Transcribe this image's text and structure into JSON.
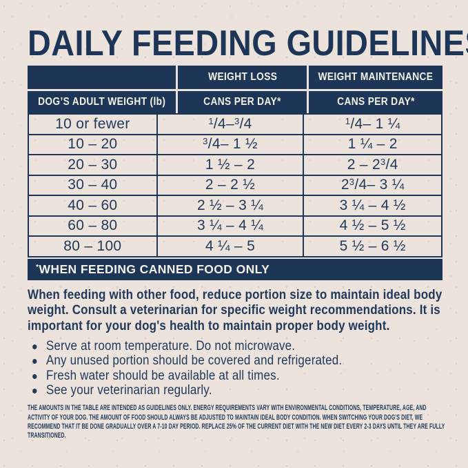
{
  "page": {
    "title": "DAILY FEEDING GUIDELINES"
  },
  "colors": {
    "navy": "#1d3557",
    "cream": "#ece4dc",
    "header_text": "#f6f2ec",
    "body_text": "#21395a"
  },
  "table": {
    "col_group_headers": [
      "",
      "WEIGHT LOSS",
      "WEIGHT MAINTENANCE"
    ],
    "col_headers": [
      "DOG’S ADULT WEIGHT (lb)",
      "CANS PER DAY*",
      "CANS PER DAY*"
    ],
    "rows": [
      {
        "weight": "10 or fewer",
        "weight_loss": "1/4 – 3/4",
        "weight_maintenance": "1/4 – 1 ¼"
      },
      {
        "weight": "10 – 20",
        "weight_loss": "3/4 – 1 ½",
        "weight_maintenance": "1 ¼ – 2"
      },
      {
        "weight": "20 – 30",
        "weight_loss": "1 ½ – 2",
        "weight_maintenance": "2 – 2 3/4"
      },
      {
        "weight": "30 – 40",
        "weight_loss": "2 – 2 ½",
        "weight_maintenance": "2 3/4 – 3 ¼"
      },
      {
        "weight": "40 – 60",
        "weight_loss": "2 ½ – 3 ¼",
        "weight_maintenance": "3 ¼ – 4 ½"
      },
      {
        "weight": "60 – 80",
        "weight_loss": "3 ¼ – 4 ¼",
        "weight_maintenance": "4 ½ – 5 ½"
      },
      {
        "weight": "80 – 100",
        "weight_loss": "4 ¼ – 5",
        "weight_maintenance": "5 ½ – 6 ½"
      }
    ],
    "footnote": "*WHEN FEEDING CANNED FOOD ONLY"
  },
  "notes": {
    "paragraph": "When feeding with other food, reduce portion size to maintain ideal body weight. Consult a veterinarian for specific weight recommendations. It is important for your dog's health to maintain proper body weight.",
    "bullets": [
      "Serve at room temperature. Do not microwave.",
      "Any unused portion should be covered and refrigerated.",
      "Fresh water should be available at all times.",
      "See your veterinarian regularly."
    ]
  },
  "fine_print": {
    "text": "THE AMOUNTS IN THE TABLE ARE INTENDED AS GUIDELINES ONLY. ENERGY REQUIREMENTS VARY WITH ENVIRONMENTAL CONDITIONS, TEMPERATURE, AGE, AND ACTIVITY OF YOUR DOG. THE AMOUNT OF FOOD SHOULD ALWAYS BE ADJUSTED TO MAINTAIN IDEAL BODY CONDITION. WHEN SWITCHING YOUR DOG’S DIET, WE RECOMMEND THAT IT BE DONE GRADUALLY OVER A 7-10 DAY PERIOD. REPLACE 25% OF THE CURRENT DIET WITH THE NEW DIET EVERY 2-3 DAYS UNTIL THEY ARE FULLY TRANSITIONED."
  }
}
